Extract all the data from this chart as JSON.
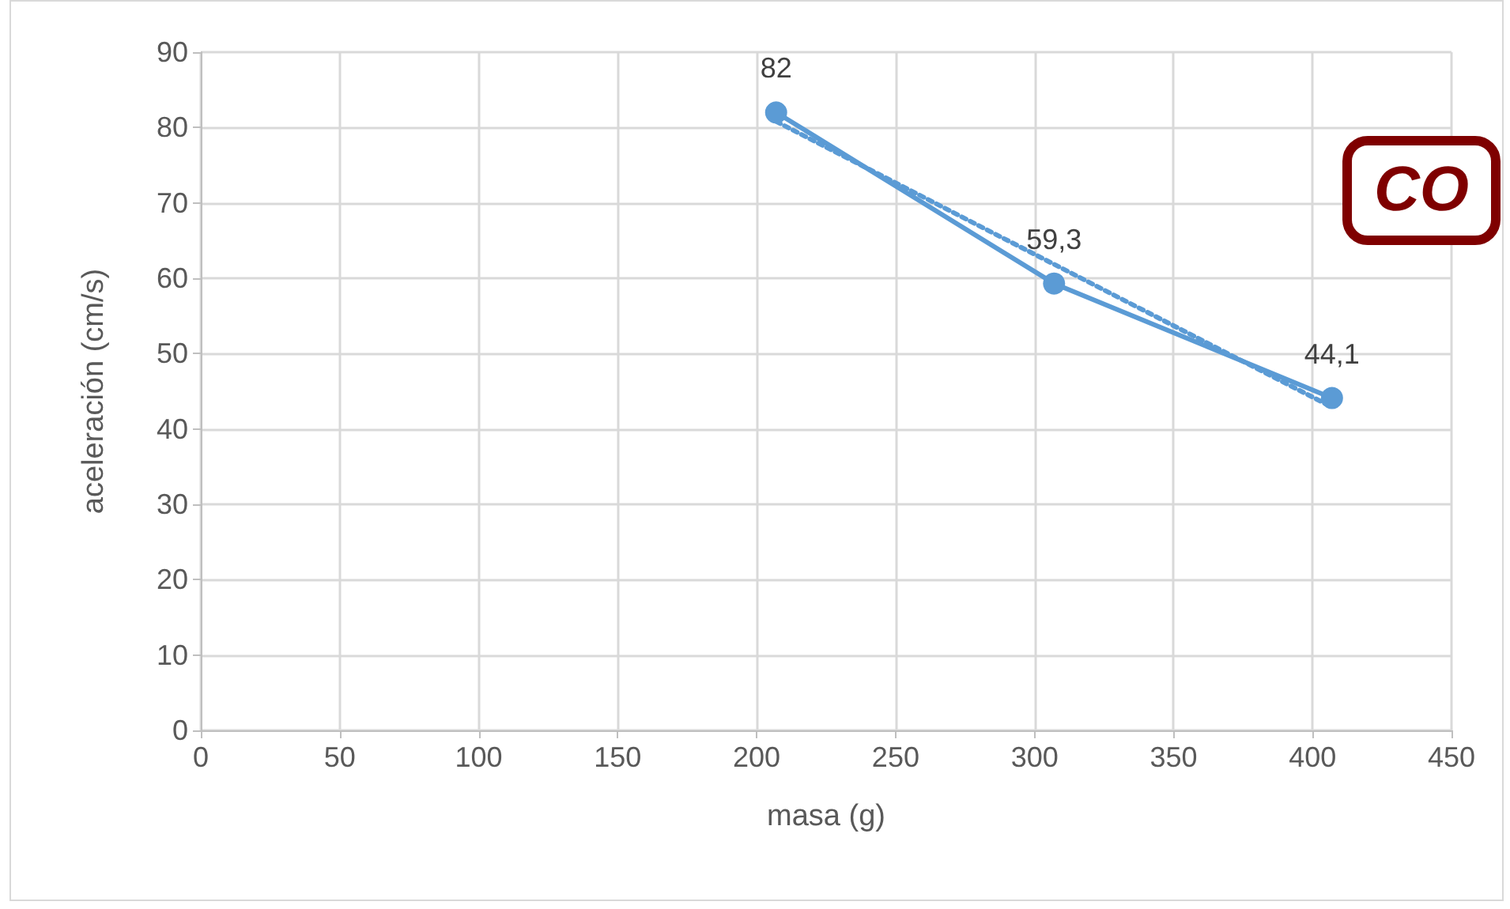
{
  "chart_data": {
    "type": "line",
    "xlabel": "masa (g)",
    "ylabel": "aceleración (cm/s)",
    "x": [
      207,
      307,
      407
    ],
    "series": [
      {
        "color": "#5b9bd5",
        "values": [
          82,
          59.3,
          44.1
        ],
        "value_labels": [
          "82",
          "59,3",
          "44,1"
        ],
        "marker": "circle",
        "line_style": "solid"
      },
      {
        "x": [
          207,
          407
        ],
        "values": [
          80.8,
          42.9
        ],
        "color": "#5b9bd5",
        "line_style": "dotted",
        "marker": "none"
      }
    ],
    "xlim": [
      0,
      450
    ],
    "xticks": [
      0,
      50,
      100,
      150,
      200,
      250,
      300,
      350,
      400,
      450
    ],
    "ylim": [
      0,
      90
    ],
    "yticks": [
      0,
      10,
      20,
      30,
      40,
      50,
      60,
      70,
      80,
      90
    ],
    "grid": true,
    "annotations": [
      "CO"
    ]
  }
}
